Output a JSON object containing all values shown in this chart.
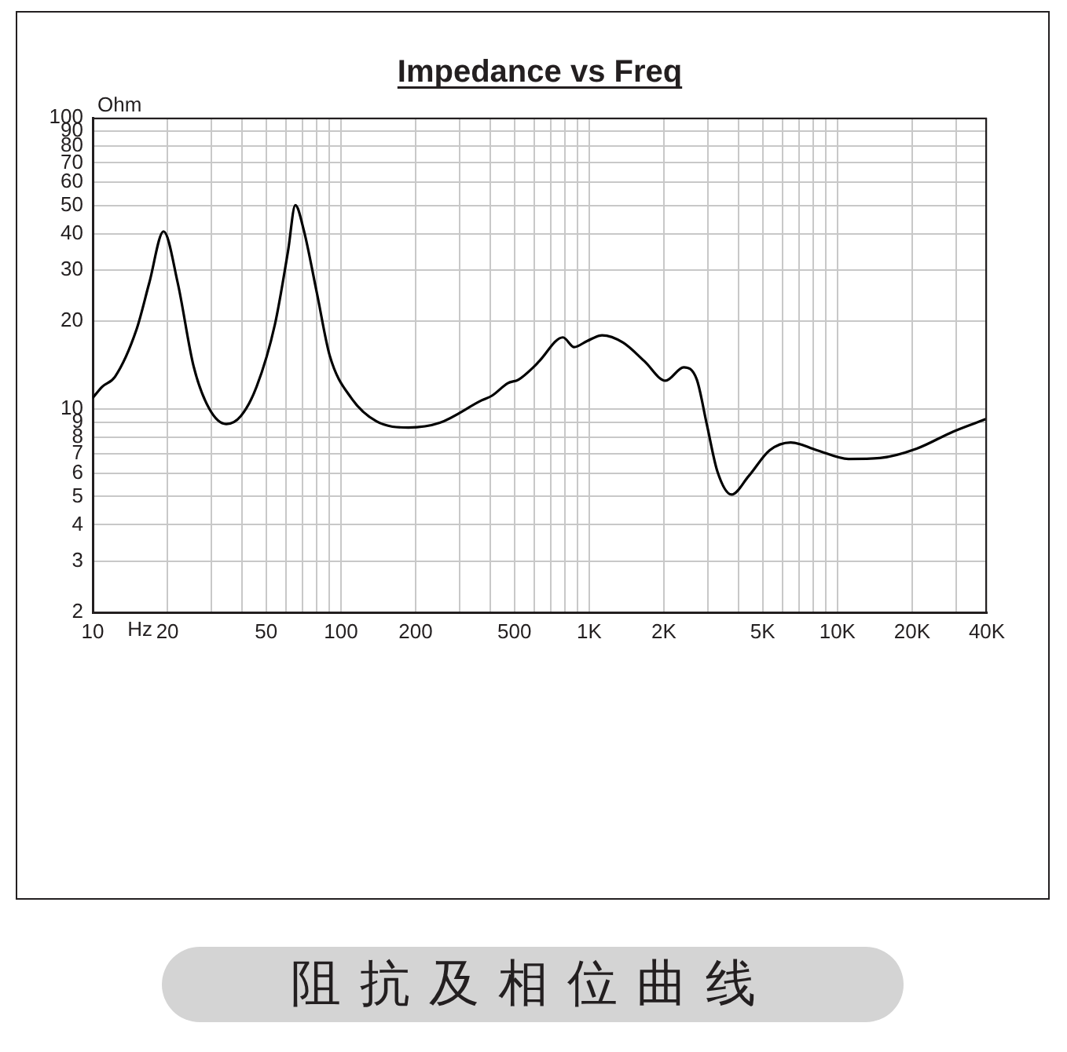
{
  "chart_data": {
    "type": "line",
    "title": "Impedance vs Freq",
    "xlabel": "Hz",
    "ylabel": "Ohm",
    "log": "xy",
    "grid": true,
    "legend": false,
    "marker": "none",
    "line_style": "solid",
    "annotations": [
      "阻抗及相位曲线"
    ],
    "xlim": [
      10,
      40000
    ],
    "ylim": [
      2,
      100
    ],
    "xticks": [
      10,
      20,
      {
        "value": 30,
        "label": null
      },
      {
        "value": 40,
        "label": null
      },
      50,
      {
        "value": 60,
        "label": null
      },
      {
        "value": 70,
        "label": null
      },
      {
        "value": 80,
        "label": null
      },
      {
        "value": 90,
        "label": null
      },
      100,
      200,
      {
        "value": 300,
        "label": null
      },
      {
        "value": 400,
        "label": null
      },
      500,
      {
        "value": 600,
        "label": null
      },
      {
        "value": 700,
        "label": null
      },
      {
        "value": 800,
        "label": null
      },
      {
        "value": 900,
        "label": null
      },
      {
        "value": 1000,
        "label": "1K"
      },
      {
        "value": 2000,
        "label": "2K"
      },
      {
        "value": 3000,
        "label": null
      },
      {
        "value": 4000,
        "label": null
      },
      {
        "value": 5000,
        "label": "5K"
      },
      {
        "value": 6000,
        "label": null
      },
      {
        "value": 7000,
        "label": null
      },
      {
        "value": 8000,
        "label": null
      },
      {
        "value": 9000,
        "label": null
      },
      {
        "value": 10000,
        "label": "10K"
      },
      {
        "value": 20000,
        "label": "20K"
      },
      {
        "value": 30000,
        "label": null
      },
      {
        "value": 40000,
        "label": "40K"
      }
    ],
    "yticks": [
      2,
      3,
      4,
      5,
      6,
      7,
      8,
      9,
      10,
      20,
      30,
      40,
      50,
      60,
      70,
      80,
      90,
      100
    ],
    "series": [
      {
        "color": "#000000",
        "x": [
          10,
          10.9,
          12.3,
          15,
          16.9,
          19.3,
          22,
          25.5,
          29.5,
          34.5,
          39.5,
          45.7,
          54.2,
          61.2,
          65.5,
          70.9,
          80,
          90.2,
          110,
          139,
          187,
          250,
          369,
          406,
          470,
          519,
          601,
          630,
          784,
          870,
          980,
          1127,
          1370,
          1667,
          2030,
          2404,
          2715,
          2976,
          3283,
          3748,
          4385,
          5337,
          6484,
          8268,
          11080,
          14840,
          20850,
          29300,
          40000
        ],
        "values": [
          10.9,
          11.9,
          12.9,
          18.7,
          27.1,
          40.7,
          27.1,
          14,
          10,
          8.87,
          9.45,
          11.9,
          19.5,
          34.8,
          50.1,
          41,
          25,
          15.2,
          10.9,
          9.06,
          8.63,
          8.96,
          10.7,
          11.1,
          12.25,
          12.6,
          14,
          14.6,
          17.6,
          16.3,
          17.1,
          17.9,
          16.9,
          14.6,
          12.5,
          13.9,
          12.6,
          8.87,
          6.11,
          5.08,
          5.87,
          7.21,
          7.67,
          7.21,
          6.73,
          6.78,
          7.3,
          8.36,
          9.25
        ]
      }
    ]
  }
}
